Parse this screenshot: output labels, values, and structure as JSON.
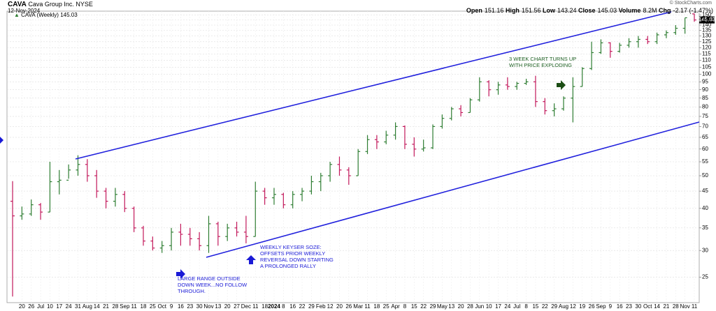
{
  "header": {
    "symbol": "CAVA",
    "company": "Cava Group Inc.",
    "exchange": "NYSE",
    "date": "12-Nov-2024",
    "watermark": "© StockCharts.com",
    "stat_labels": {
      "open": "Open",
      "high": "High",
      "low": "Low",
      "close": "Close",
      "volume": "Volume",
      "chg": "Chg"
    },
    "volume": "8.2M",
    "chg": "-2.17 (-1.47%)"
  },
  "chart_data": {
    "type": "ohlc",
    "series_label": "CAVA (Weekly)",
    "categories": [
      null,
      "20",
      "26",
      "Jul",
      "10",
      "17",
      "24",
      "31",
      "Aug",
      "14",
      "21",
      "28",
      "Sep",
      "11",
      "18",
      "25",
      "Oct",
      "9",
      "16",
      "23",
      "30",
      "Nov",
      "13",
      "20",
      "27",
      "Dec",
      "11",
      "18",
      "2024",
      "8",
      "16",
      "22",
      "29",
      "Feb",
      "12",
      "20",
      "26",
      "Mar",
      "11",
      "18",
      "25",
      "Apr",
      "8",
      "15",
      "22",
      "29",
      "May",
      "13",
      "20",
      "28",
      "Jun",
      "10",
      "17",
      "24",
      "Jul",
      "8",
      "15",
      "22",
      "29",
      "Aug",
      "12",
      "19",
      "26",
      "Sep",
      "9",
      "16",
      "23",
      "30",
      "Oct",
      "14",
      "21",
      "28",
      "Nov",
      "11"
    ],
    "open": [
      42,
      38,
      38.5,
      41,
      39,
      48,
      48.5,
      52,
      54,
      50,
      45,
      42,
      44,
      40,
      35,
      32,
      30.5,
      31,
      34,
      33.5,
      32.5,
      31,
      36,
      33,
      35,
      34,
      33,
      45,
      43,
      44,
      41,
      44,
      45,
      48,
      50,
      54,
      52,
      50,
      59,
      64,
      63,
      66,
      70,
      62,
      60,
      60.5,
      70,
      74,
      79,
      77,
      84,
      95,
      90,
      93,
      92,
      94,
      95,
      83,
      78,
      79,
      85,
      92,
      104,
      116,
      124,
      117,
      122,
      125,
      127,
      125,
      131,
      133,
      137,
      151.16
    ],
    "high": [
      48.2,
      40.5,
      42.5,
      41.5,
      55,
      52,
      54,
      57.5,
      56,
      52,
      46,
      46,
      45,
      40.5,
      35.5,
      33,
      32,
      35,
      36,
      35,
      34,
      38,
      36.5,
      36,
      36.5,
      38,
      48,
      46,
      46,
      44.5,
      45,
      46,
      50,
      51,
      55,
      57,
      53,
      60,
      66,
      66,
      68,
      72,
      70.5,
      65,
      64,
      71,
      76,
      80,
      81,
      85,
      98,
      96,
      95,
      98,
      95,
      97,
      99,
      85,
      82,
      86,
      98,
      105,
      125,
      127,
      124.5,
      124,
      128,
      130,
      130,
      133,
      135,
      140,
      147,
      151.56
    ],
    "low": [
      21.9,
      37,
      38,
      37,
      39,
      44,
      49,
      50,
      48,
      43,
      40,
      40.5,
      39,
      34,
      31,
      30,
      29.5,
      30,
      31,
      31,
      30,
      29.5,
      31,
      32,
      33,
      31.5,
      33,
      41,
      41,
      40,
      40,
      42,
      44,
      45,
      48,
      50,
      47,
      50,
      58,
      60,
      62,
      64,
      60,
      57,
      59,
      60,
      69,
      73,
      75,
      77,
      83,
      86,
      87,
      90,
      90,
      93,
      80,
      76,
      75,
      78,
      72,
      92,
      103,
      115,
      112,
      116,
      120,
      120,
      123,
      123,
      128,
      131,
      132,
      143.24
    ],
    "close": [
      38,
      38.5,
      41,
      39,
      48,
      48.5,
      52,
      54,
      50,
      45,
      42,
      44,
      40,
      35,
      32,
      30.5,
      31,
      34,
      33.5,
      32.5,
      31,
      36,
      33,
      35,
      34,
      33,
      45,
      43,
      44,
      41,
      44,
      45,
      48,
      50,
      54,
      52,
      50,
      59,
      64,
      63,
      66,
      70,
      62,
      60,
      60.5,
      70,
      74,
      79,
      77,
      84,
      95,
      90,
      93,
      92,
      94,
      95,
      83,
      78,
      79,
      85,
      92,
      104,
      116,
      124,
      117,
      122,
      125,
      127,
      125,
      131,
      133,
      137,
      147.2,
      145.03
    ],
    "up_color": "#2e7d32",
    "down_color": "#c2185b",
    "log_scale": true,
    "ylim": [
      21,
      154
    ],
    "yticks": [
      25,
      30,
      35,
      40,
      45,
      50,
      55,
      60,
      65,
      70,
      75,
      80,
      85,
      90,
      95,
      100,
      105,
      110,
      115,
      120,
      125,
      130,
      135,
      140,
      145,
      150
    ],
    "grid": true,
    "annotations": [
      {
        "lines": [
          "3 WEEK CHART TURNS UP",
          "WITH PRICE EXPLODING"
        ],
        "color": "#1b5e20"
      },
      {
        "lines": [
          "WEEKLY KEYSER SOZE:",
          "OFFSETS PRIOR WEEKLY",
          "REVERSAL DOWN STARTING",
          "A PROLONGED RALLY"
        ],
        "color": "#1a1ad6"
      },
      {
        "lines": [
          "LARGE RANGE OUTSIDE",
          "DOWN WEEK...NO FOLLOW",
          "THROUGH."
        ],
        "color": "#1a1ad6"
      }
    ]
  }
}
